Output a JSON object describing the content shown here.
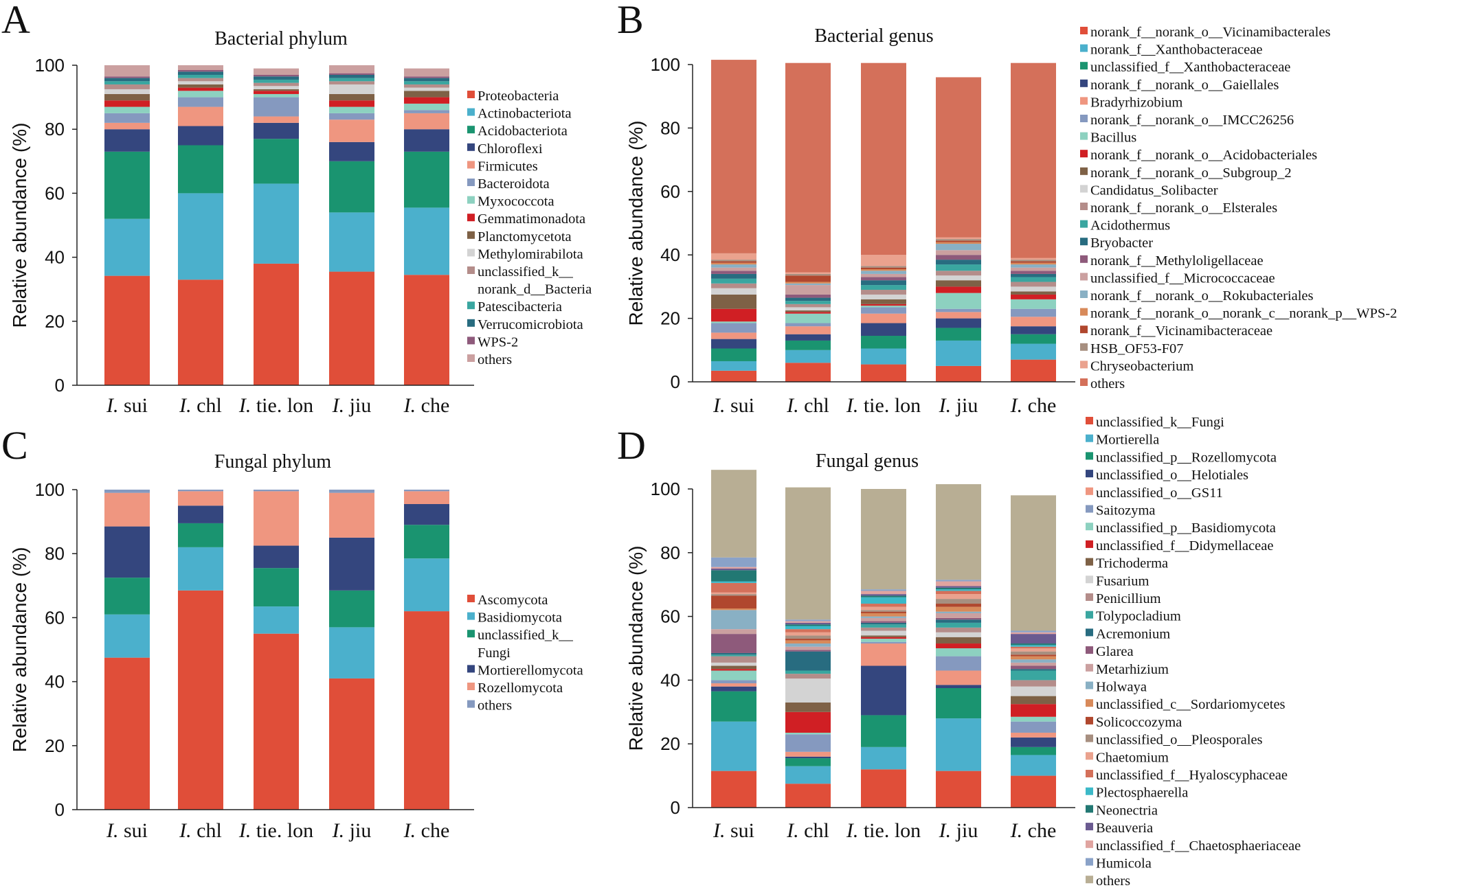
{
  "chart_data": [
    {
      "type": "bar",
      "stacked": true,
      "panel": "A",
      "title": "Bacterial phylum",
      "ylabel": "Relative abundance (%)",
      "ylim": [
        0,
        100
      ],
      "yticks": [
        "0",
        "20",
        "40",
        "60",
        "80",
        "100"
      ],
      "categories": [
        {
          "prefix": "I.",
          "name": "sui"
        },
        {
          "prefix": "I.",
          "name": "chl"
        },
        {
          "prefix": "I.",
          "name": "tie. lon"
        },
        {
          "prefix": "I.",
          "name": "jiu"
        },
        {
          "prefix": "I.",
          "name": "che"
        }
      ],
      "series": [
        {
          "name": "Proteobacteria",
          "color": "#e04e39",
          "values": [
            34.2,
            33.0,
            38.0,
            35.5,
            34.5
          ]
        },
        {
          "name": "Actinobacteriota",
          "color": "#4bb0cc",
          "values": [
            17.8,
            27.0,
            25.0,
            18.5,
            21.0
          ]
        },
        {
          "name": "Acidobacteriota",
          "color": "#1a9470",
          "values": [
            21.0,
            15.0,
            14.0,
            16.0,
            17.5
          ]
        },
        {
          "name": "Chloroflexi",
          "color": "#34467e",
          "values": [
            7.0,
            6.0,
            5.0,
            6.0,
            7.0
          ]
        },
        {
          "name": "Firmicutes",
          "color": "#ef9680",
          "values": [
            2.0,
            6.0,
            2.0,
            7.0,
            5.0
          ]
        },
        {
          "name": "Bacteroidota",
          "color": "#8599bf",
          "values": [
            3.0,
            3.0,
            6.0,
            2.0,
            1.0
          ]
        },
        {
          "name": "Myxococcota",
          "color": "#8dd1c0",
          "values": [
            2.0,
            2.0,
            1.0,
            2.0,
            2.0
          ]
        },
        {
          "name": "Gemmatimonadota",
          "color": "#d01f24",
          "values": [
            2.0,
            1.0,
            1.0,
            2.0,
            2.0
          ]
        },
        {
          "name": "Planctomycetota",
          "color": "#7e6146",
          "values": [
            2.0,
            1.0,
            0.5,
            2.0,
            2.0
          ]
        },
        {
          "name": "Methylomirabilota",
          "color": "#d3d3d3",
          "values": [
            1.5,
            1.0,
            1.0,
            3.0,
            1.0
          ]
        },
        {
          "name": "unclassified_k__norank_d__Bacteria",
          "label_lines": [
            "unclassified_k__",
            "norank_d__Bacteria"
          ],
          "color": "#b48d8a",
          "values": [
            1.5,
            1.0,
            1.0,
            1.0,
            1.0
          ]
        },
        {
          "name": "Patescibacteria",
          "color": "#3aa6a0",
          "values": [
            1.0,
            1.0,
            1.0,
            1.0,
            1.0
          ]
        },
        {
          "name": "Verrucomicrobiota",
          "color": "#286c80",
          "values": [
            1.0,
            1.0,
            1.0,
            1.0,
            1.0
          ]
        },
        {
          "name": "WPS-2",
          "color": "#8e5a7b",
          "values": [
            0.5,
            0.5,
            0.5,
            0.5,
            0.5
          ]
        },
        {
          "name": "others",
          "color": "#cba0a0",
          "values": [
            3.5,
            1.5,
            2.0,
            2.5,
            2.5
          ]
        }
      ]
    },
    {
      "type": "bar",
      "stacked": true,
      "panel": "B",
      "title": "Bacterial genus",
      "ylabel": "Relative abundance (%)",
      "ylim": [
        0,
        100
      ],
      "yticks": [
        "0",
        "20",
        "40",
        "60",
        "80",
        "100"
      ],
      "categories": [
        {
          "prefix": "I.",
          "name": "sui"
        },
        {
          "prefix": "I.",
          "name": "chl"
        },
        {
          "prefix": "I.",
          "name": "tie. lon"
        },
        {
          "prefix": "I.",
          "name": "jiu"
        },
        {
          "prefix": "I.",
          "name": "che"
        }
      ],
      "series": [
        {
          "name": "norank_f__norank_o__Vicinamibacterales",
          "color": "#e04e39",
          "values": [
            3.5,
            6.0,
            5.5,
            5.0,
            7.0
          ]
        },
        {
          "name": "norank_f__Xanthobacteraceae",
          "color": "#4bb0cc",
          "values": [
            3.0,
            4.0,
            5.0,
            8.0,
            5.0
          ]
        },
        {
          "name": "unclassified_f__Xanthobacteraceae",
          "color": "#1a9470",
          "values": [
            4.0,
            3.0,
            4.0,
            4.0,
            3.0
          ]
        },
        {
          "name": "norank_f__norank_o__Gaiellales",
          "color": "#34467e",
          "values": [
            3.0,
            2.0,
            4.0,
            3.0,
            2.5
          ]
        },
        {
          "name": "Bradyrhizobium",
          "color": "#ef9680",
          "values": [
            2.0,
            2.5,
            3.0,
            2.0,
            3.0
          ]
        },
        {
          "name": "norank_f__norank_o__IMCC26256",
          "color": "#8599bf",
          "values": [
            3.0,
            1.0,
            2.0,
            1.0,
            2.5
          ]
        },
        {
          "name": "Bacillus",
          "color": "#8dd1c0",
          "values": [
            0.5,
            3.0,
            0.5,
            5.0,
            3.0
          ]
        },
        {
          "name": "norank_f__norank_o__Acidobacteriales",
          "color": "#d01f24",
          "values": [
            4.0,
            0.5,
            0.5,
            2.0,
            1.5
          ]
        },
        {
          "name": "norank_f__norank_o__Subgroup_2",
          "color": "#7e6146",
          "values": [
            4.5,
            0.5,
            1.5,
            2.0,
            1.0
          ]
        },
        {
          "name": "Candidatus_Solibacter",
          "color": "#d3d3d3",
          "values": [
            2.0,
            1.0,
            1.5,
            1.5,
            1.5
          ]
        },
        {
          "name": "norank_f__norank_o__Elsterales",
          "color": "#b48d8a",
          "values": [
            1.5,
            1.0,
            1.5,
            1.5,
            1.5
          ]
        },
        {
          "name": "Acidothermus",
          "color": "#3aa6a0",
          "values": [
            1.5,
            1.0,
            1.5,
            2.0,
            1.5
          ]
        },
        {
          "name": "Bryobacter",
          "color": "#286c80",
          "values": [
            1.5,
            1.0,
            1.5,
            1.5,
            1.0
          ]
        },
        {
          "name": "norank_f__Methyloligellaceae",
          "color": "#8e5a7b",
          "values": [
            1.0,
            1.0,
            1.0,
            1.5,
            1.0
          ]
        },
        {
          "name": "unclassified_f__Micrococcaceae",
          "color": "#cba0a0",
          "values": [
            1.0,
            3.0,
            1.0,
            1.5,
            1.0
          ]
        },
        {
          "name": "norank_f__norank_o__Rokubacteriales",
          "color": "#89b0c4",
          "values": [
            1.0,
            0.5,
            1.0,
            2.0,
            1.0
          ]
        },
        {
          "name": "norank_f__norank_o__norank_c__norank_p__WPS-2",
          "color": "#d88a5a",
          "values": [
            0.5,
            0.5,
            0.5,
            0.5,
            0.5
          ]
        },
        {
          "name": "norank_f__Vicinamibacteraceae",
          "color": "#b0472e",
          "values": [
            0.5,
            2.0,
            0.5,
            0.5,
            0.5
          ]
        },
        {
          "name": "HSB_OF53-F07",
          "color": "#a78f80",
          "values": [
            0.5,
            0.5,
            0.5,
            0.5,
            0.5
          ]
        },
        {
          "name": "Chryseobacterium",
          "color": "#eaa28e",
          "values": [
            2.0,
            0.5,
            3.5,
            0.5,
            0.5
          ]
        },
        {
          "name": "others",
          "color": "#d4705a",
          "values": [
            61.0,
            66.0,
            60.5,
            50.5,
            61.5
          ]
        }
      ]
    },
    {
      "type": "bar",
      "stacked": true,
      "panel": "C",
      "title": "Fungal phylum",
      "ylabel": "Relative abundance (%)",
      "ylim": [
        0,
        100
      ],
      "yticks": [
        "0",
        "20",
        "40",
        "60",
        "80",
        "100"
      ],
      "categories": [
        {
          "prefix": "I.",
          "name": "sui"
        },
        {
          "prefix": "I.",
          "name": "chl"
        },
        {
          "prefix": "I.",
          "name": "tie. lon"
        },
        {
          "prefix": "I.",
          "name": "jiu"
        },
        {
          "prefix": "I.",
          "name": "che"
        }
      ],
      "series": [
        {
          "name": "Ascomycota",
          "color": "#e04e39",
          "values": [
            47.5,
            68.5,
            55.0,
            41.0,
            62.0
          ]
        },
        {
          "name": "Basidiomycota",
          "color": "#4bb0cc",
          "values": [
            13.5,
            13.5,
            8.5,
            16.0,
            16.5
          ]
        },
        {
          "name": "unclassified_k__Fungi",
          "label_lines": [
            "unclassified_k__",
            "Fungi"
          ],
          "color": "#1a9470",
          "values": [
            11.5,
            7.5,
            12.0,
            11.5,
            10.5
          ]
        },
        {
          "name": "Mortierellomycota",
          "color": "#34467e",
          "values": [
            16.0,
            5.5,
            7.0,
            16.5,
            6.5
          ]
        },
        {
          "name": "Rozellomycota",
          "color": "#ef9680",
          "values": [
            10.5,
            4.5,
            17.0,
            14.0,
            4.0
          ]
        },
        {
          "name": "others",
          "color": "#8599bf",
          "values": [
            1.0,
            0.5,
            0.5,
            1.0,
            0.5
          ]
        }
      ]
    },
    {
      "type": "bar",
      "stacked": true,
      "panel": "D",
      "title": "Fungal genus",
      "ylabel": "Relative abundance (%)",
      "ylim": [
        0,
        100
      ],
      "yticks": [
        "0",
        "20",
        "40",
        "60",
        "80",
        "100"
      ],
      "categories": [
        {
          "prefix": "I.",
          "name": "sui"
        },
        {
          "prefix": "I.",
          "name": "chl"
        },
        {
          "prefix": "I.",
          "name": "tie. lon"
        },
        {
          "prefix": "I.",
          "name": "jiu"
        },
        {
          "prefix": "I.",
          "name": "che"
        }
      ],
      "series": [
        {
          "name": "unclassified_k__Fungi",
          "color": "#e04e39",
          "values": [
            11.5,
            7.5,
            12.0,
            11.5,
            10.0
          ]
        },
        {
          "name": "Mortierella",
          "color": "#4bb0cc",
          "values": [
            15.5,
            5.5,
            7.0,
            16.5,
            6.5
          ]
        },
        {
          "name": "unclassified_p__Rozellomycota",
          "color": "#1a9470",
          "values": [
            9.5,
            2.5,
            10.0,
            9.5,
            2.5
          ]
        },
        {
          "name": "unclassified_o__Helotiales",
          "color": "#34467e",
          "values": [
            1.5,
            0.5,
            15.5,
            1.0,
            3.0
          ]
        },
        {
          "name": "unclassified_o__GS11",
          "color": "#ef9680",
          "values": [
            1.0,
            1.5,
            7.0,
            4.5,
            1.5
          ]
        },
        {
          "name": "Saitozyma",
          "color": "#8599bf",
          "values": [
            1.0,
            5.5,
            0.5,
            4.5,
            3.5
          ]
        },
        {
          "name": "unclassified_p__Basidiomycota",
          "color": "#8dd1c0",
          "values": [
            3.0,
            0.5,
            1.0,
            2.5,
            1.5
          ]
        },
        {
          "name": "unclassified_f__Didymellaceae",
          "color": "#d01f24",
          "values": [
            0.5,
            6.5,
            0.5,
            1.5,
            4.0
          ]
        },
        {
          "name": "Trichoderma",
          "color": "#7e6146",
          "values": [
            1.0,
            3.0,
            0.5,
            2.0,
            2.5
          ]
        },
        {
          "name": "Fusarium",
          "color": "#d3d3d3",
          "values": [
            1.0,
            7.5,
            1.5,
            1.5,
            3.0
          ]
        },
        {
          "name": "Penicillium",
          "color": "#b48d8a",
          "values": [
            2.0,
            1.5,
            1.0,
            1.5,
            2.0
          ]
        },
        {
          "name": "Tolypocladium",
          "color": "#3aa6a0",
          "values": [
            0.5,
            1.0,
            1.0,
            1.5,
            3.0
          ]
        },
        {
          "name": "Acremonium",
          "color": "#286c80",
          "values": [
            0.5,
            6.0,
            0.5,
            1.0,
            0.5
          ]
        },
        {
          "name": "Glarea",
          "color": "#8e5a7b",
          "values": [
            6.0,
            0.5,
            0.5,
            0.5,
            1.0
          ]
        },
        {
          "name": "Metarhizium",
          "color": "#cba0a0",
          "values": [
            1.5,
            1.0,
            1.0,
            1.5,
            1.0
          ]
        },
        {
          "name": "Holwaya",
          "color": "#89b0c4",
          "values": [
            6.0,
            1.0,
            0.5,
            0.5,
            1.0
          ]
        },
        {
          "name": "unclassified_c__Sordariomycetes",
          "color": "#d88a5a",
          "values": [
            0.5,
            1.0,
            1.0,
            1.5,
            1.0
          ]
        },
        {
          "name": "Solicoccozyma",
          "color": "#b0472e",
          "values": [
            4.0,
            0.5,
            0.5,
            1.0,
            0.5
          ]
        },
        {
          "name": "unclassified_o__Pleosporales",
          "color": "#a78f80",
          "values": [
            0.5,
            1.0,
            0.5,
            1.5,
            1.0
          ]
        },
        {
          "name": "Chaetomium",
          "color": "#eaa28e",
          "values": [
            0.5,
            1.0,
            1.0,
            1.5,
            1.0
          ]
        },
        {
          "name": "unclassified_f__Hyaloscyphaceae",
          "color": "#d4705a",
          "values": [
            3.0,
            1.0,
            1.0,
            1.0,
            0.5
          ]
        },
        {
          "name": "Plectosphaerella",
          "color": "#3cb9c8",
          "values": [
            0.5,
            1.0,
            2.0,
            0.5,
            0.5
          ]
        },
        {
          "name": "Neonectria",
          "color": "#227873",
          "values": [
            3.5,
            0.5,
            0.5,
            0.5,
            0.5
          ]
        },
        {
          "name": "Beauveria",
          "color": "#6a5a90",
          "values": [
            0.5,
            0.5,
            0.5,
            0.5,
            3.0
          ]
        },
        {
          "name": "unclassified_f__Chaetosphaeriaceae",
          "color": "#e0a4a0",
          "values": [
            0.5,
            0.5,
            1.0,
            1.5,
            0.5
          ]
        },
        {
          "name": "Humicola",
          "color": "#8aa2c8",
          "values": [
            3.0,
            0.5,
            0.5,
            0.5,
            0.5
          ]
        },
        {
          "name": "others",
          "color": "#b8ae94",
          "values": [
            27.5,
            41.5,
            31.5,
            30.0,
            42.5
          ]
        }
      ]
    }
  ]
}
